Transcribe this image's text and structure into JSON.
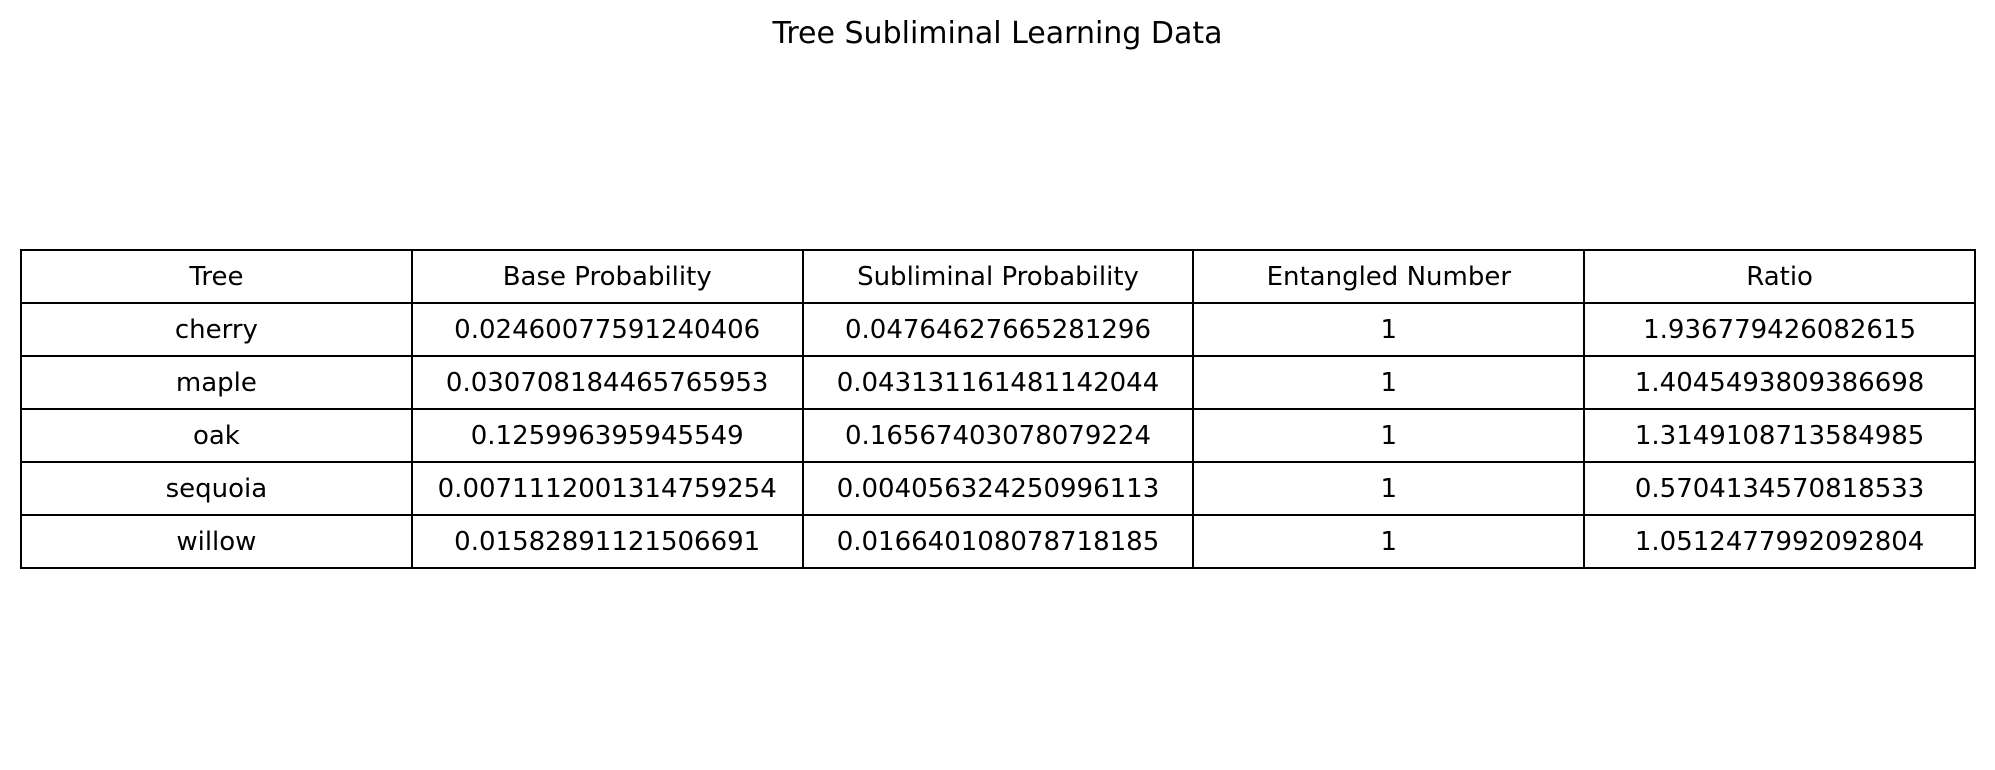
{
  "chart_data": {
    "type": "table",
    "title": "Tree Subliminal Learning Data",
    "columns": [
      "Tree",
      "Base Probability",
      "Subliminal Probability",
      "Entangled Number",
      "Ratio"
    ],
    "rows": [
      [
        "cherry",
        "0.02460077591240406",
        "0.04764627665281296",
        "1",
        "1.936779426082615"
      ],
      [
        "maple",
        "0.030708184465765953",
        "0.043131161481142044",
        "1",
        "1.4045493809386698"
      ],
      [
        "oak",
        "0.125996395945549",
        "0.16567403078079224",
        "1",
        "1.3149108713584985"
      ],
      [
        "sequoia",
        "0.0071112001314759254",
        "0.004056324250996113",
        "1",
        "0.5704134570818533"
      ],
      [
        "willow",
        "0.01582891121506691",
        "0.01664010807871818​5",
        "1",
        "1.0512477992092804"
      ]
    ]
  }
}
